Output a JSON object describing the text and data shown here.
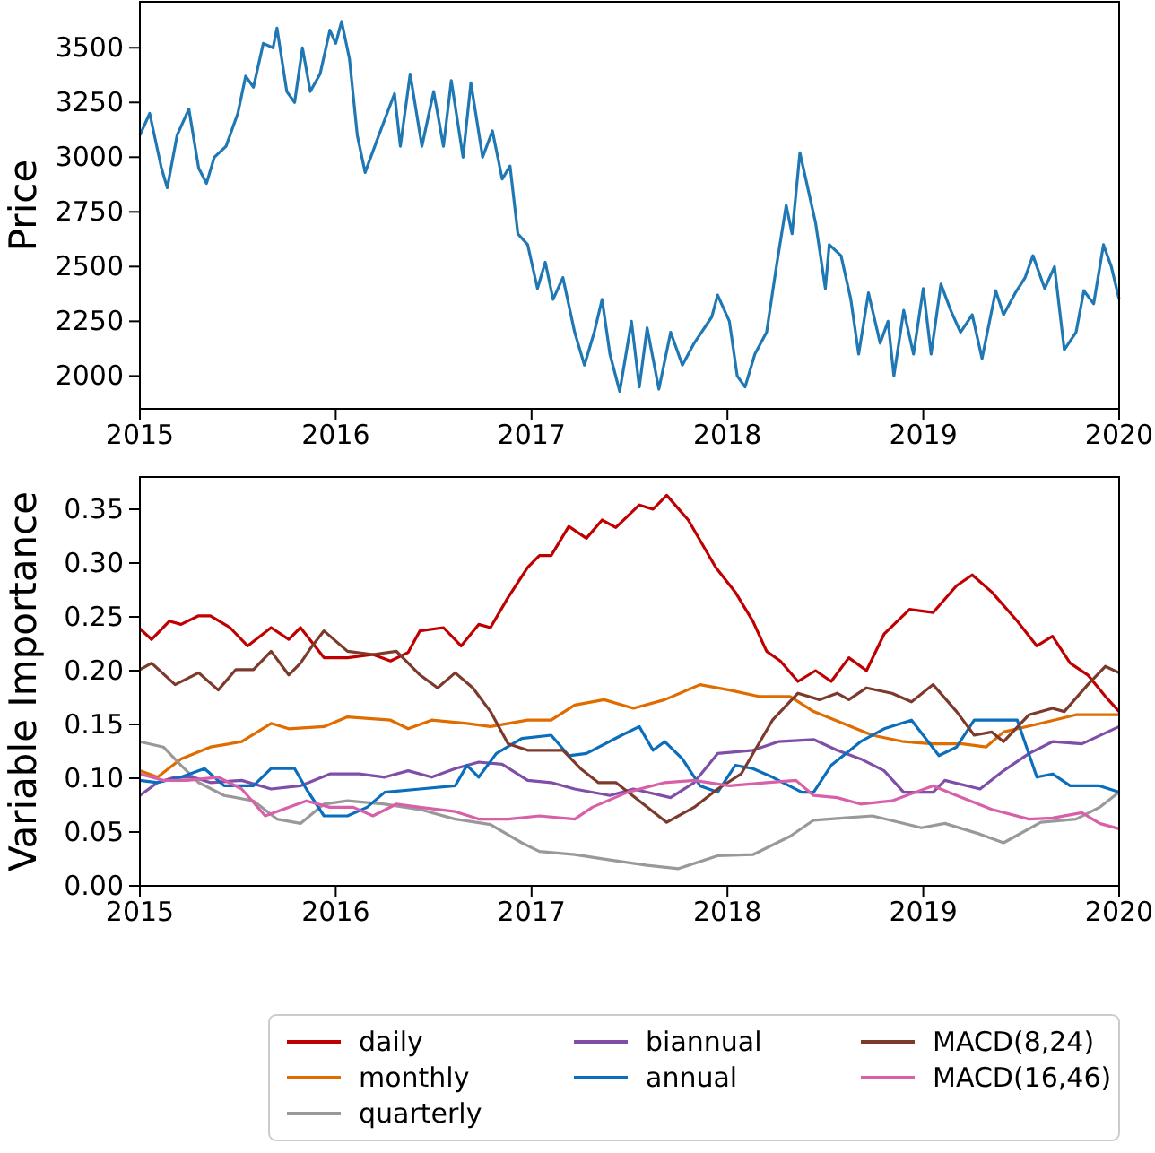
{
  "chart_data": [
    {
      "type": "line",
      "ylabel": "Price",
      "xlim": [
        2015,
        2020
      ],
      "xticks": [
        2015,
        2016,
        2017,
        2018,
        2019,
        2020
      ],
      "ylim": [
        1850,
        3710
      ],
      "yticks": [
        2000,
        2250,
        2500,
        2750,
        3000,
        3250,
        3500
      ],
      "grid": false,
      "legend": false,
      "series": [
        {
          "color": "#1f77b4",
          "x": [
            2015.0,
            2015.05,
            2015.11,
            2015.14,
            2015.19,
            2015.25,
            2015.3,
            2015.34,
            2015.38,
            2015.44,
            2015.5,
            2015.54,
            2015.58,
            2015.63,
            2015.68,
            2015.7,
            2015.75,
            2015.79,
            2015.83,
            2015.87,
            2015.92,
            2015.97,
            2016.0,
            2016.03,
            2016.07,
            2016.11,
            2016.15,
            2016.22,
            2016.3,
            2016.33,
            2016.38,
            2016.44,
            2016.5,
            2016.55,
            2016.59,
            2016.65,
            2016.69,
            2016.75,
            2016.8,
            2016.85,
            2016.89,
            2016.93,
            2016.98,
            2017.03,
            2017.07,
            2017.11,
            2017.16,
            2017.22,
            2017.27,
            2017.32,
            2017.36,
            2017.4,
            2017.45,
            2017.51,
            2017.55,
            2017.59,
            2017.65,
            2017.71,
            2017.77,
            2017.83,
            2017.92,
            2017.95,
            2018.01,
            2018.05,
            2018.09,
            2018.14,
            2018.2,
            2018.25,
            2018.3,
            2018.33,
            2018.37,
            2018.4,
            2018.45,
            2018.5,
            2018.52,
            2018.58,
            2018.63,
            2018.67,
            2018.72,
            2018.78,
            2018.82,
            2018.85,
            2018.9,
            2018.95,
            2019.0,
            2019.04,
            2019.09,
            2019.14,
            2019.19,
            2019.25,
            2019.3,
            2019.37,
            2019.41,
            2019.47,
            2019.52,
            2019.56,
            2019.62,
            2019.67,
            2019.72,
            2019.78,
            2019.82,
            2019.87,
            2019.92,
            2019.96,
            2020.0
          ],
          "values": [
            3100,
            3200,
            2950,
            2860,
            3100,
            3220,
            2950,
            2880,
            3000,
            3050,
            3200,
            3370,
            3320,
            3520,
            3500,
            3590,
            3300,
            3250,
            3500,
            3300,
            3380,
            3580,
            3520,
            3620,
            3450,
            3100,
            2930,
            3100,
            3290,
            3050,
            3380,
            3050,
            3300,
            3050,
            3350,
            3000,
            3340,
            3000,
            3120,
            2900,
            2960,
            2650,
            2600,
            2400,
            2520,
            2350,
            2450,
            2200,
            2050,
            2200,
            2350,
            2100,
            1930,
            2250,
            1950,
            2220,
            1940,
            2200,
            2050,
            2150,
            2270,
            2370,
            2250,
            2000,
            1950,
            2100,
            2200,
            2500,
            2780,
            2650,
            3020,
            2900,
            2700,
            2400,
            2600,
            2550,
            2350,
            2100,
            2380,
            2150,
            2250,
            2000,
            2300,
            2100,
            2400,
            2100,
            2420,
            2300,
            2200,
            2280,
            2080,
            2390,
            2280,
            2380,
            2450,
            2550,
            2400,
            2500,
            2120,
            2200,
            2390,
            2330,
            2600,
            2500,
            2350
          ]
        }
      ]
    },
    {
      "type": "line",
      "ylabel": "Variable Importance",
      "xlim": [
        2015,
        2020
      ],
      "xticks": [
        2015,
        2016,
        2017,
        2018,
        2019,
        2020
      ],
      "ylim": [
        0,
        0.38
      ],
      "yticks": [
        {
          "value": 0,
          "label": "0.00"
        },
        {
          "value": 0.05,
          "label": "0.05"
        },
        {
          "value": 0.1,
          "label": "0.10"
        },
        {
          "value": 0.15,
          "label": "0.15"
        },
        {
          "value": 0.2,
          "label": "0.20"
        },
        {
          "value": 0.25,
          "label": "0.25"
        },
        {
          "value": 0.3,
          "label": "0.30"
        },
        {
          "value": 0.35,
          "label": "0.35"
        }
      ],
      "grid": false,
      "legend": "bottom",
      "series": [
        {
          "name": "daily",
          "color": "#c00000",
          "x": [
            2015.0,
            2015.06,
            2015.15,
            2015.21,
            2015.3,
            2015.36,
            2015.46,
            2015.55,
            2015.67,
            2015.76,
            2015.82,
            2015.94,
            2016.06,
            2016.19,
            2016.28,
            2016.37,
            2016.43,
            2016.55,
            2016.64,
            2016.73,
            2016.79,
            2016.88,
            2016.98,
            2017.04,
            2017.1,
            2017.19,
            2017.28,
            2017.36,
            2017.43,
            2017.55,
            2017.62,
            2017.69,
            2017.8,
            2017.94,
            2018.04,
            2018.13,
            2018.2,
            2018.27,
            2018.36,
            2018.45,
            2018.53,
            2018.62,
            2018.71,
            2018.8,
            2018.93,
            2019.05,
            2019.17,
            2019.25,
            2019.35,
            2019.48,
            2019.58,
            2019.66,
            2019.75,
            2019.84,
            2019.93,
            2020.0
          ],
          "values": [
            0.239,
            0.229,
            0.246,
            0.243,
            0.251,
            0.251,
            0.24,
            0.223,
            0.24,
            0.229,
            0.24,
            0.212,
            0.212,
            0.215,
            0.209,
            0.217,
            0.237,
            0.24,
            0.223,
            0.243,
            0.24,
            0.268,
            0.296,
            0.307,
            0.307,
            0.334,
            0.323,
            0.34,
            0.333,
            0.354,
            0.35,
            0.363,
            0.34,
            0.296,
            0.273,
            0.246,
            0.218,
            0.209,
            0.19,
            0.2,
            0.19,
            0.212,
            0.2,
            0.234,
            0.257,
            0.254,
            0.279,
            0.289,
            0.273,
            0.246,
            0.223,
            0.232,
            0.207,
            0.196,
            0.176,
            0.162
          ]
        },
        {
          "name": "monthly",
          "color": "#e06c00",
          "x": [
            2015.0,
            2015.09,
            2015.21,
            2015.36,
            2015.52,
            2015.67,
            2015.76,
            2015.94,
            2016.06,
            2016.28,
            2016.37,
            2016.49,
            2016.67,
            2016.79,
            2016.98,
            2017.1,
            2017.22,
            2017.37,
            2017.52,
            2017.68,
            2017.86,
            2018.01,
            2018.16,
            2018.32,
            2018.44,
            2018.59,
            2018.74,
            2018.9,
            2019.05,
            2019.2,
            2019.32,
            2019.41,
            2019.6,
            2019.78,
            2020.0
          ],
          "values": [
            0.107,
            0.101,
            0.118,
            0.129,
            0.134,
            0.151,
            0.146,
            0.148,
            0.157,
            0.154,
            0.146,
            0.154,
            0.151,
            0.148,
            0.154,
            0.154,
            0.168,
            0.173,
            0.165,
            0.173,
            0.187,
            0.182,
            0.176,
            0.176,
            0.162,
            0.151,
            0.14,
            0.134,
            0.132,
            0.132,
            0.129,
            0.143,
            0.151,
            0.159,
            0.159
          ]
        },
        {
          "name": "quarterly",
          "color": "#999999",
          "x": [
            2015.0,
            2015.12,
            2015.21,
            2015.3,
            2015.43,
            2015.58,
            2015.7,
            2015.82,
            2015.94,
            2016.06,
            2016.25,
            2016.43,
            2016.61,
            2016.79,
            2016.95,
            2017.04,
            2017.22,
            2017.4,
            2017.59,
            2017.75,
            2017.95,
            2018.13,
            2018.32,
            2018.44,
            2018.59,
            2018.74,
            2018.99,
            2019.11,
            2019.29,
            2019.41,
            2019.6,
            2019.78,
            2019.9,
            2020.0
          ],
          "values": [
            0.134,
            0.129,
            0.112,
            0.096,
            0.084,
            0.079,
            0.062,
            0.058,
            0.076,
            0.079,
            0.076,
            0.071,
            0.062,
            0.057,
            0.04,
            0.032,
            0.029,
            0.024,
            0.019,
            0.016,
            0.028,
            0.029,
            0.046,
            0.061,
            0.063,
            0.065,
            0.054,
            0.058,
            0.048,
            0.04,
            0.059,
            0.062,
            0.073,
            0.087
          ]
        },
        {
          "name": "biannual",
          "color": "#7f4fa8",
          "x": [
            2015.0,
            2015.09,
            2015.18,
            2015.27,
            2015.36,
            2015.52,
            2015.67,
            2015.82,
            2015.97,
            2016.12,
            2016.25,
            2016.37,
            2016.49,
            2016.61,
            2016.73,
            2016.85,
            2016.98,
            2017.1,
            2017.22,
            2017.4,
            2017.52,
            2017.71,
            2017.83,
            2017.95,
            2018.13,
            2018.26,
            2018.44,
            2018.56,
            2018.68,
            2018.8,
            2018.9,
            2019.05,
            2019.11,
            2019.29,
            2019.41,
            2019.54,
            2019.66,
            2019.81,
            2020.0
          ],
          "values": [
            0.084,
            0.096,
            0.101,
            0.101,
            0.096,
            0.098,
            0.09,
            0.093,
            0.104,
            0.104,
            0.101,
            0.107,
            0.101,
            0.109,
            0.115,
            0.113,
            0.098,
            0.096,
            0.09,
            0.084,
            0.09,
            0.082,
            0.096,
            0.123,
            0.126,
            0.134,
            0.136,
            0.126,
            0.118,
            0.107,
            0.087,
            0.087,
            0.098,
            0.09,
            0.107,
            0.123,
            0.134,
            0.132,
            0.148
          ]
        },
        {
          "name": "annual",
          "color": "#0a6ebd",
          "x": [
            2015.0,
            2015.09,
            2015.21,
            2015.33,
            2015.43,
            2015.58,
            2015.67,
            2015.79,
            2015.85,
            2015.94,
            2016.06,
            2016.16,
            2016.25,
            2016.43,
            2016.61,
            2016.67,
            2016.73,
            2016.82,
            2016.95,
            2017.1,
            2017.19,
            2017.28,
            2017.46,
            2017.55,
            2017.62,
            2017.68,
            2017.77,
            2017.86,
            2017.95,
            2018.04,
            2018.13,
            2018.23,
            2018.38,
            2018.44,
            2018.53,
            2018.68,
            2018.8,
            2018.94,
            2019.08,
            2019.17,
            2019.26,
            2019.48,
            2019.58,
            2019.66,
            2019.75,
            2019.9,
            2020.0
          ],
          "values": [
            0.098,
            0.096,
            0.101,
            0.109,
            0.093,
            0.093,
            0.109,
            0.109,
            0.09,
            0.065,
            0.065,
            0.073,
            0.087,
            0.09,
            0.093,
            0.112,
            0.101,
            0.123,
            0.137,
            0.14,
            0.121,
            0.123,
            0.14,
            0.148,
            0.126,
            0.134,
            0.118,
            0.093,
            0.087,
            0.112,
            0.109,
            0.101,
            0.087,
            0.087,
            0.112,
            0.134,
            0.146,
            0.154,
            0.121,
            0.129,
            0.154,
            0.154,
            0.101,
            0.104,
            0.093,
            0.093,
            0.087
          ]
        },
        {
          "name": "MACD(8,24)",
          "color": "#7b3a2c",
          "x": [
            2015.0,
            2015.06,
            2015.18,
            2015.3,
            2015.4,
            2015.49,
            2015.58,
            2015.67,
            2015.76,
            2015.82,
            2015.88,
            2015.94,
            2016.06,
            2016.19,
            2016.31,
            2016.43,
            2016.52,
            2016.61,
            2016.7,
            2016.79,
            2016.88,
            2016.98,
            2017.16,
            2017.25,
            2017.34,
            2017.43,
            2017.55,
            2017.69,
            2017.83,
            2017.95,
            2018.07,
            2018.23,
            2018.36,
            2018.47,
            2018.56,
            2018.62,
            2018.71,
            2018.84,
            2018.94,
            2019.05,
            2019.17,
            2019.26,
            2019.35,
            2019.41,
            2019.54,
            2019.66,
            2019.72,
            2019.84,
            2019.93,
            2020.0
          ],
          "values": [
            0.201,
            0.207,
            0.187,
            0.198,
            0.182,
            0.201,
            0.201,
            0.218,
            0.196,
            0.207,
            0.223,
            0.237,
            0.218,
            0.215,
            0.218,
            0.196,
            0.184,
            0.198,
            0.184,
            0.162,
            0.132,
            0.126,
            0.126,
            0.109,
            0.096,
            0.096,
            0.079,
            0.059,
            0.073,
            0.09,
            0.104,
            0.154,
            0.179,
            0.173,
            0.179,
            0.173,
            0.184,
            0.179,
            0.171,
            0.187,
            0.162,
            0.14,
            0.143,
            0.134,
            0.159,
            0.165,
            0.162,
            0.187,
            0.204,
            0.198
          ]
        },
        {
          "name": "MACD(16,46)",
          "color": "#d860a8",
          "x": [
            2015.0,
            2015.12,
            2015.24,
            2015.4,
            2015.52,
            2015.64,
            2015.73,
            2015.85,
            2015.97,
            2016.09,
            2016.19,
            2016.31,
            2016.43,
            2016.61,
            2016.73,
            2016.88,
            2017.04,
            2017.22,
            2017.31,
            2017.49,
            2017.68,
            2017.83,
            2018.01,
            2018.2,
            2018.35,
            2018.44,
            2018.56,
            2018.68,
            2018.84,
            2019.05,
            2019.17,
            2019.35,
            2019.54,
            2019.66,
            2019.81,
            2019.9,
            2020.0
          ],
          "values": [
            0.104,
            0.098,
            0.098,
            0.101,
            0.09,
            0.065,
            0.071,
            0.079,
            0.073,
            0.073,
            0.065,
            0.076,
            0.073,
            0.069,
            0.062,
            0.062,
            0.065,
            0.062,
            0.073,
            0.087,
            0.096,
            0.098,
            0.093,
            0.096,
            0.098,
            0.084,
            0.082,
            0.076,
            0.079,
            0.093,
            0.084,
            0.071,
            0.062,
            0.063,
            0.068,
            0.058,
            0.053
          ]
        }
      ]
    }
  ]
}
